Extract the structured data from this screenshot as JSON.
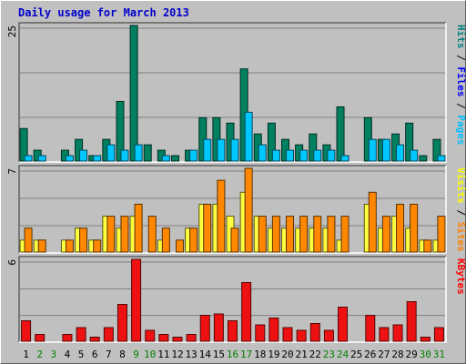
{
  "chart_data": {
    "type": "bar",
    "title": "Daily usage for March 2013",
    "categories": [
      "1",
      "2",
      "3",
      "4",
      "5",
      "6",
      "7",
      "8",
      "9",
      "10",
      "11",
      "12",
      "13",
      "14",
      "15",
      "16",
      "17",
      "18",
      "19",
      "20",
      "21",
      "22",
      "23",
      "24",
      "25",
      "26",
      "27",
      "28",
      "29",
      "30",
      "31"
    ],
    "weekend_days": [
      2,
      3,
      9,
      10,
      16,
      17,
      23,
      24,
      30,
      31
    ],
    "panels": [
      {
        "name": "hits-files-pages",
        "ymax": 25,
        "ymax_label": "25",
        "grid": true,
        "legend": [
          {
            "label": "Pages",
            "color": "#00c0ff"
          },
          {
            "label": "Files",
            "color": "#0000ff"
          },
          {
            "label": "Hits",
            "color": "#008080"
          }
        ],
        "series": [
          {
            "name": "Hits",
            "color": "#008060",
            "values": [
              6,
              2,
              0,
              2,
              4,
              1,
              4,
              11,
              25,
              3,
              2,
              1,
              2,
              8,
              8,
              7,
              17,
              5,
              7,
              4,
              3,
              5,
              3,
              10,
              0,
              8,
              4,
              5,
              7,
              1,
              4
            ]
          },
          {
            "name": "Pages",
            "color": "#00c8ff",
            "values": [
              1,
              1,
              0,
              1,
              2,
              1,
              3,
              2,
              3,
              0,
              1,
              0,
              2,
              4,
              4,
              4,
              9,
              3,
              2,
              2,
              2,
              2,
              2,
              1,
              0,
              4,
              4,
              3,
              2,
              0,
              1
            ]
          }
        ]
      },
      {
        "name": "visits-sites",
        "ymax": 7,
        "ymax_label": "7",
        "grid": true,
        "legend": [
          {
            "label": "Sites",
            "color": "#ff8000"
          },
          {
            "label": "Visits",
            "color": "#ffff00"
          }
        ],
        "series": [
          {
            "name": "Visits",
            "color": "#ffff40",
            "values": [
              1,
              1,
              0,
              1,
              2,
              1,
              3,
              2,
              3,
              0,
              1,
              0,
              2,
              4,
              4,
              3,
              5,
              3,
              2,
              2,
              2,
              2,
              2,
              1,
              0,
              4,
              2,
              3,
              2,
              1,
              1
            ]
          },
          {
            "name": "Sites",
            "color": "#ff8800",
            "values": [
              2,
              1,
              0,
              1,
              2,
              1,
              3,
              3,
              4,
              3,
              2,
              1,
              2,
              4,
              6,
              2,
              7,
              3,
              3,
              3,
              3,
              3,
              3,
              3,
              0,
              5,
              3,
              4,
              4,
              1,
              3
            ]
          }
        ]
      },
      {
        "name": "kbytes",
        "ymax": 6,
        "ymax_label": "6",
        "grid": true,
        "legend": [
          {
            "label": "KBytes",
            "color": "#ff0000"
          }
        ],
        "series": [
          {
            "name": "KBytes",
            "color": "#ee1111",
            "values": [
              1.5,
              0.5,
              0,
              0.5,
              1.0,
              0.3,
              1.0,
              2.7,
              6.0,
              0.8,
              0.5,
              0.3,
              0.5,
              1.9,
              2.0,
              1.5,
              4.3,
              1.2,
              1.7,
              1.0,
              0.8,
              1.3,
              0.8,
              2.5,
              0,
              1.9,
              1.0,
              1.2,
              2.9,
              0.3,
              1.0
            ]
          }
        ]
      }
    ]
  }
}
